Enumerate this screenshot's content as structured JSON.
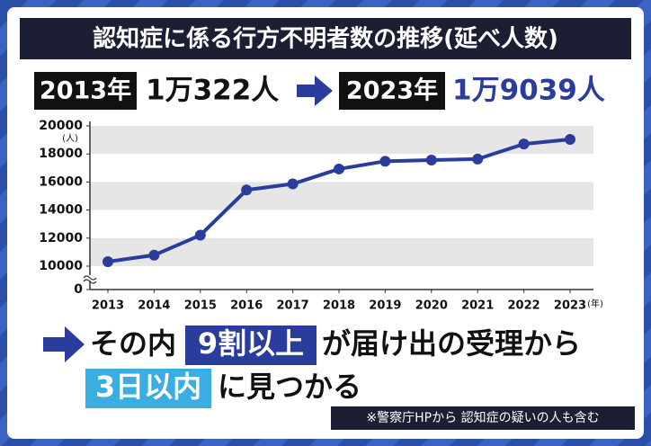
{
  "chart_data": {
    "type": "line",
    "title": "認知症に係る行方不明者数の推移(延べ人数)",
    "headline": [
      "2013年",
      "1万322人",
      "2023年",
      "1万9039人"
    ],
    "categories": [
      "2013",
      "2014",
      "2015",
      "2016",
      "2017",
      "2018",
      "2019",
      "2020",
      "2021",
      "2022",
      "2023"
    ],
    "series": [
      {
        "name": "行方不明者数",
        "color": "#2a3c9c",
        "values": [
          10322,
          10783,
          12208,
          15432,
          15863,
          16927,
          17479,
          17565,
          17636,
          18709,
          19039
        ]
      }
    ],
    "ylim": [
      10000,
      20000
    ],
    "yticks": [
      0,
      10000,
      12000,
      14000,
      16000,
      18000,
      20000
    ],
    "axis_break": true,
    "y_unit": "(人)",
    "x_unit": "(年)",
    "grid": true,
    "callout": [
      "その内",
      "9割以上",
      "が届け出の受理から",
      "3日以内",
      "に見つかる"
    ],
    "note": "※警察庁HPから 認知症の疑いの人も含む"
  }
}
